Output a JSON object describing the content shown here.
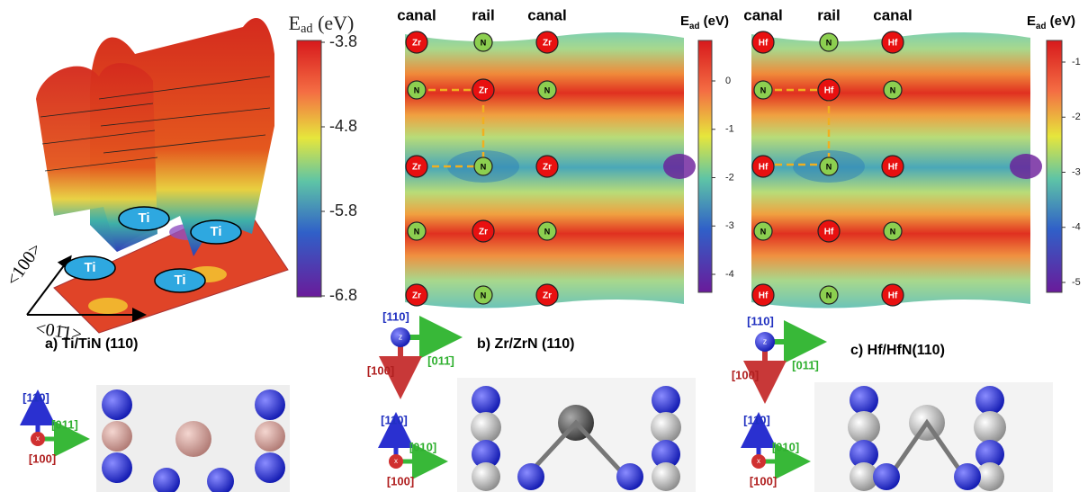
{
  "panel_a": {
    "colorbar": {
      "symbol": "E",
      "subscript": "ad",
      "unit": "(eV)",
      "ticks": [
        -3.8,
        -4.8,
        -5.8,
        -6.8
      ]
    },
    "atoms": [
      "Ti",
      "Ti",
      "Ti",
      "Ti"
    ],
    "directions": [
      "<100>",
      "<01̄1>"
    ],
    "caption": "a) Ti/TiN (110)",
    "view_axes": {
      "vertical": "[110]",
      "horizontal": "[011]",
      "out": "[100]",
      "sphere_label": "x"
    }
  },
  "panel_b": {
    "columns": [
      "canal",
      "rail",
      "canal"
    ],
    "colorbar": {
      "symbol": "E",
      "subscript": "ad",
      "unit": "(eV)",
      "ticks": [
        0,
        -1,
        -2,
        -3,
        -4
      ]
    },
    "atoms": [
      "Zr",
      "N",
      "Zr",
      "N",
      "Zr",
      "N",
      "Zr",
      "N",
      "Zr",
      "N",
      "Zr",
      "N",
      "Zr",
      "N",
      "Zr"
    ],
    "caption": "b) Zr/ZrN (110)",
    "top_axes": {
      "vertical": "[110]",
      "horizontal": "[011̄]",
      "down": "[100]",
      "sphere_label": "z"
    },
    "view_axes": {
      "vertical": "[110]",
      "horizontal": "[010]",
      "out": "[100]",
      "sphere_label": "x"
    }
  },
  "panel_c": {
    "columns": [
      "canal",
      "rail",
      "canal"
    ],
    "colorbar": {
      "symbol": "E",
      "subscript": "ad",
      "unit": "(eV)",
      "ticks": [
        -1,
        -2,
        -3,
        -4,
        -5
      ]
    },
    "atoms": [
      "Hf",
      "N",
      "Hf",
      "N",
      "Hf",
      "N",
      "Hf",
      "N",
      "Hf",
      "N",
      "Hf",
      "N",
      "Hf",
      "N",
      "Hf"
    ],
    "caption": "c) Hf/HfN(110)",
    "top_axes": {
      "vertical": "[110]",
      "horizontal": "[011̄]",
      "down": "[100]",
      "sphere_label": "z"
    },
    "view_axes": {
      "vertical": "[110]",
      "horizontal": "[010]",
      "out": "[100]",
      "sphere_label": "x"
    }
  }
}
